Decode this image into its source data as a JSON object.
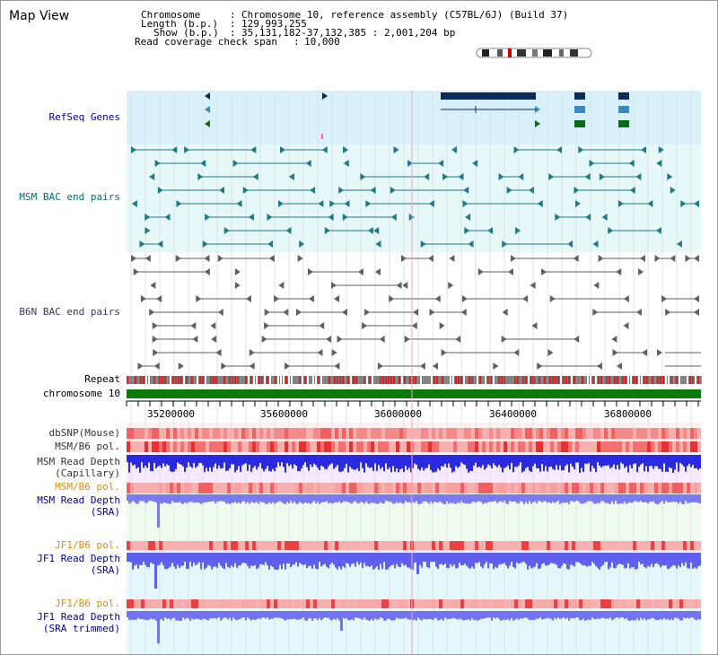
{
  "header": {
    "title": "Map View",
    "chromosome_label": "Chromosome",
    "chromosome_value": "Chromosome 10, reference assembly (C57BL/6J) (Build 37)",
    "length_label": "Length (b.p.)",
    "length_value": "129,993,255",
    "show_label": "Show (b.p.)",
    "show_value": "35,131,182-37,132,385 : 2,001,204 bp",
    "coverage_label": "Read coverage check span",
    "coverage_value": "10,000",
    "sep": ":"
  },
  "tracks": {
    "refseq": "RefSeq Genes",
    "msm_bac": "MSM BAC end pairs",
    "b6n_bac": "B6N BAC end pairs",
    "repeat": "Repeat",
    "chromosome": "chromosome 10",
    "dbsnp": "dbSNP(Mouse)",
    "msm_b6_pol": "MSM/B6 pol.",
    "msm_read_cap_1": "MSM Read Depth",
    "msm_read_cap_2": "(Capillary)",
    "msm_b6_pol_2": "MSM/B6 pol.",
    "msm_read_sra_1": "MSM Read Depth",
    "msm_read_sra_2": "(SRA)",
    "jf1_b6_pol": "JF1/B6 pol.",
    "jf1_read_sra_1": "JF1 Read Depth",
    "jf1_read_sra_2": "(SRA)",
    "jf1_b6_pol_2": "JF1/B6 pol.",
    "jf1_read_trim_1": "JF1 Read Depth",
    "jf1_read_trim_2": "(SRA trimmed)"
  },
  "axis": {
    "ticks": [
      "35200000",
      "35600000",
      "36000000",
      "36400000",
      "36800000"
    ]
  },
  "colors": {
    "refseq_bg": "#d8f0fa",
    "bac_bg": "#e6f8f8",
    "gene_dark": "#0a2a5a",
    "gene_mid": "#3a8ac0",
    "gene_green": "#0a6a1a",
    "msm_bac": "#1e7a8a",
    "b6n_bac": "#606060",
    "chrom_bar": "#0a7a0a",
    "depth_blue": "#2a2ae0",
    "depth_soft": "#6a6af0",
    "label_blue": "#000099",
    "label_orange": "#e08a00",
    "label_teal": "#006a7a"
  }
}
